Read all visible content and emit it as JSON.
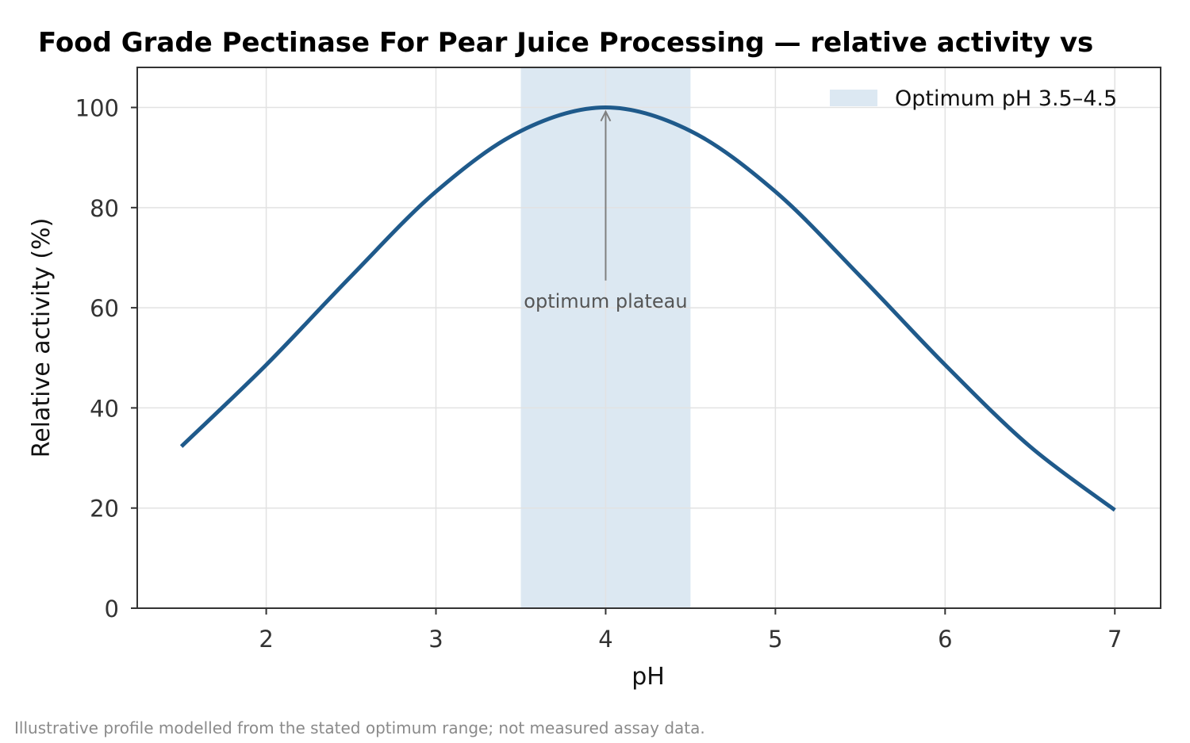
{
  "colors": {
    "line": "#1f5a8b",
    "band": "#dce8f2",
    "grid": "#e2e2e2",
    "axis": "#333333",
    "arrow": "#808080"
  },
  "chart_data": {
    "type": "line",
    "title": "Food Grade Pectinase For Pear Juice Processing — relative activity vs",
    "xlabel": "pH",
    "ylabel": "Relative activity (%)",
    "xlim": [
      1.24,
      7.27
    ],
    "ylim": [
      0,
      108
    ],
    "xticks": [
      2,
      3,
      4,
      5,
      6,
      7
    ],
    "yticks": [
      0,
      20,
      40,
      60,
      80,
      100
    ],
    "grid": true,
    "legend_position": "top-right",
    "series": [
      {
        "x": [
          1.5,
          2.0,
          2.5,
          3.0,
          3.5,
          4.0,
          4.5,
          5.0,
          5.5,
          6.0,
          6.5,
          7.0
        ],
        "values": [
          32.3,
          48.6,
          66.3,
          83.2,
          95.3,
          100.0,
          95.3,
          83.2,
          66.3,
          48.6,
          32.3,
          19.6
        ]
      }
    ],
    "bands": [
      {
        "name": "Optimum pH 3.5–4.5",
        "x_start": 3.5,
        "x_end": 4.5
      }
    ],
    "annotations": [
      {
        "text": "optimum plateau",
        "arrow_to": [
          4.0,
          99.5
        ],
        "text_at": [
          4.0,
          61.0
        ]
      }
    ],
    "footnote": "Illustrative profile modelled from the stated optimum range; not measured assay data."
  }
}
